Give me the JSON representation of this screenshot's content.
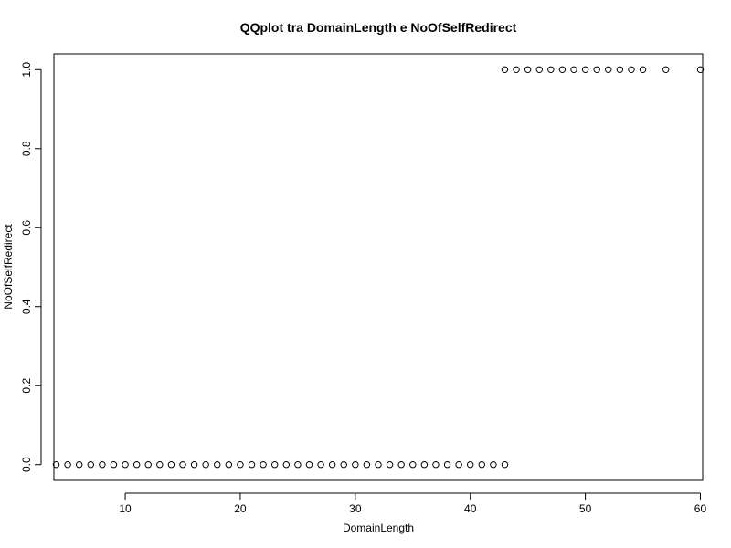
{
  "chart_data": {
    "type": "scatter",
    "title": "QQplot tra DomainLength e NoOfSelfRedirect",
    "xlabel": "DomainLength",
    "ylabel": "NoOfSelfRedirect",
    "xlim": [
      3.8,
      60.2
    ],
    "ylim": [
      -0.04,
      1.04
    ],
    "xticks": [
      10,
      20,
      30,
      40,
      50,
      60
    ],
    "yticks": [
      0.0,
      0.2,
      0.4,
      0.6,
      0.8,
      1.0
    ],
    "xtick_labels": [
      "10",
      "20",
      "30",
      "40",
      "50",
      "60"
    ],
    "ytick_labels": [
      "0.0",
      "0.2",
      "0.4",
      "0.6",
      "0.8",
      "1.0"
    ],
    "grid": false,
    "legend": "none",
    "series": [
      {
        "x": [
          4,
          5,
          6,
          7,
          8,
          9,
          10,
          11,
          12,
          13,
          14,
          15,
          16,
          17,
          18,
          19,
          20,
          21,
          22,
          23,
          24,
          25,
          26,
          27,
          28,
          29,
          30,
          31,
          32,
          33,
          34,
          35,
          36,
          37,
          38,
          39,
          40,
          41,
          42,
          43,
          43,
          44,
          45,
          46,
          47,
          48,
          49,
          50,
          51,
          52,
          53,
          54,
          55,
          57,
          60
        ],
        "y": [
          0,
          0,
          0,
          0,
          0,
          0,
          0,
          0,
          0,
          0,
          0,
          0,
          0,
          0,
          0,
          0,
          0,
          0,
          0,
          0,
          0,
          0,
          0,
          0,
          0,
          0,
          0,
          0,
          0,
          0,
          0,
          0,
          0,
          0,
          0,
          0,
          0,
          0,
          0,
          0,
          1,
          1,
          1,
          1,
          1,
          1,
          1,
          1,
          1,
          1,
          1,
          1,
          1,
          1,
          1
        ]
      }
    ]
  }
}
